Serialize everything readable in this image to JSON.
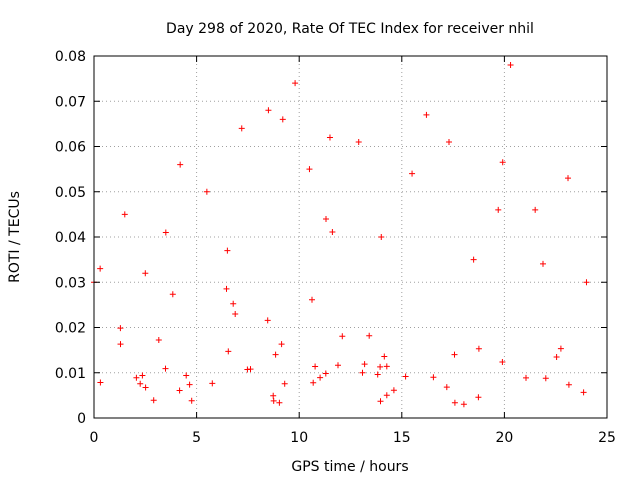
{
  "chart_data": {
    "type": "scatter",
    "title": "Day 298 of 2020, Rate Of TEC Index for receiver nhil",
    "xlabel": "GPS time / hours",
    "ylabel": "ROTI / TECUs",
    "xlim": [
      0,
      25
    ],
    "ylim": [
      0,
      0.08
    ],
    "xticks": [
      0,
      5,
      10,
      15,
      20,
      25
    ],
    "xtick_labels": [
      "0",
      "5",
      "10",
      "15",
      "20",
      "25"
    ],
    "yticks": [
      0,
      0.01,
      0.02,
      0.03,
      0.04,
      0.05,
      0.06,
      0.07,
      0.08
    ],
    "ytick_labels": [
      "0",
      "0.01",
      "0.02",
      "0.03",
      "0.04",
      "0.05",
      "0.06",
      "0.07",
      "0.08"
    ],
    "grid": true,
    "marker": "+",
    "color": "#ff0000",
    "series": [
      {
        "name": "ROTI",
        "x_range": [
          0,
          24
        ],
        "typical_range": [
          0.003,
          0.02
        ],
        "envelope": [
          {
            "x": 0,
            "upper": 0.03
          },
          {
            "x": 0.3,
            "upper": 0.033
          },
          {
            "x": 1.5,
            "upper": 0.045
          },
          {
            "x": 2.5,
            "upper": 0.032
          },
          {
            "x": 3.5,
            "upper": 0.041
          },
          {
            "x": 4.2,
            "upper": 0.056
          },
          {
            "x": 5.5,
            "upper": 0.05
          },
          {
            "x": 6.5,
            "upper": 0.037
          },
          {
            "x": 7.2,
            "upper": 0.064
          },
          {
            "x": 8.5,
            "upper": 0.068
          },
          {
            "x": 9.2,
            "upper": 0.066
          },
          {
            "x": 9.8,
            "upper": 0.074
          },
          {
            "x": 10.5,
            "upper": 0.055
          },
          {
            "x": 11.5,
            "upper": 0.062
          },
          {
            "x": 12.9,
            "upper": 0.061
          },
          {
            "x": 14,
            "upper": 0.04
          },
          {
            "x": 15.5,
            "upper": 0.054
          },
          {
            "x": 16.2,
            "upper": 0.067
          },
          {
            "x": 17.3,
            "upper": 0.061
          },
          {
            "x": 18.5,
            "upper": 0.035
          },
          {
            "x": 19.7,
            "upper": 0.046
          },
          {
            "x": 20.3,
            "upper": 0.078
          },
          {
            "x": 21.5,
            "upper": 0.046
          },
          {
            "x": 23.1,
            "upper": 0.053
          },
          {
            "x": 24,
            "upper": 0.03
          }
        ]
      }
    ]
  }
}
